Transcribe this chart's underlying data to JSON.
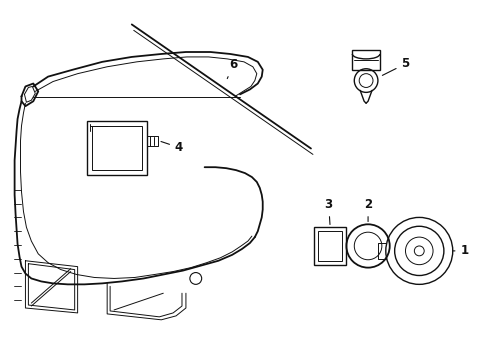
{
  "background_color": "#ffffff",
  "line_color": "#111111",
  "lw_main": 1.0,
  "lw_thin": 0.7,
  "lw_thick": 1.3,
  "label_fontsize": 8.5,
  "fig_width": 4.9,
  "fig_height": 3.6,
  "dpi": 100
}
